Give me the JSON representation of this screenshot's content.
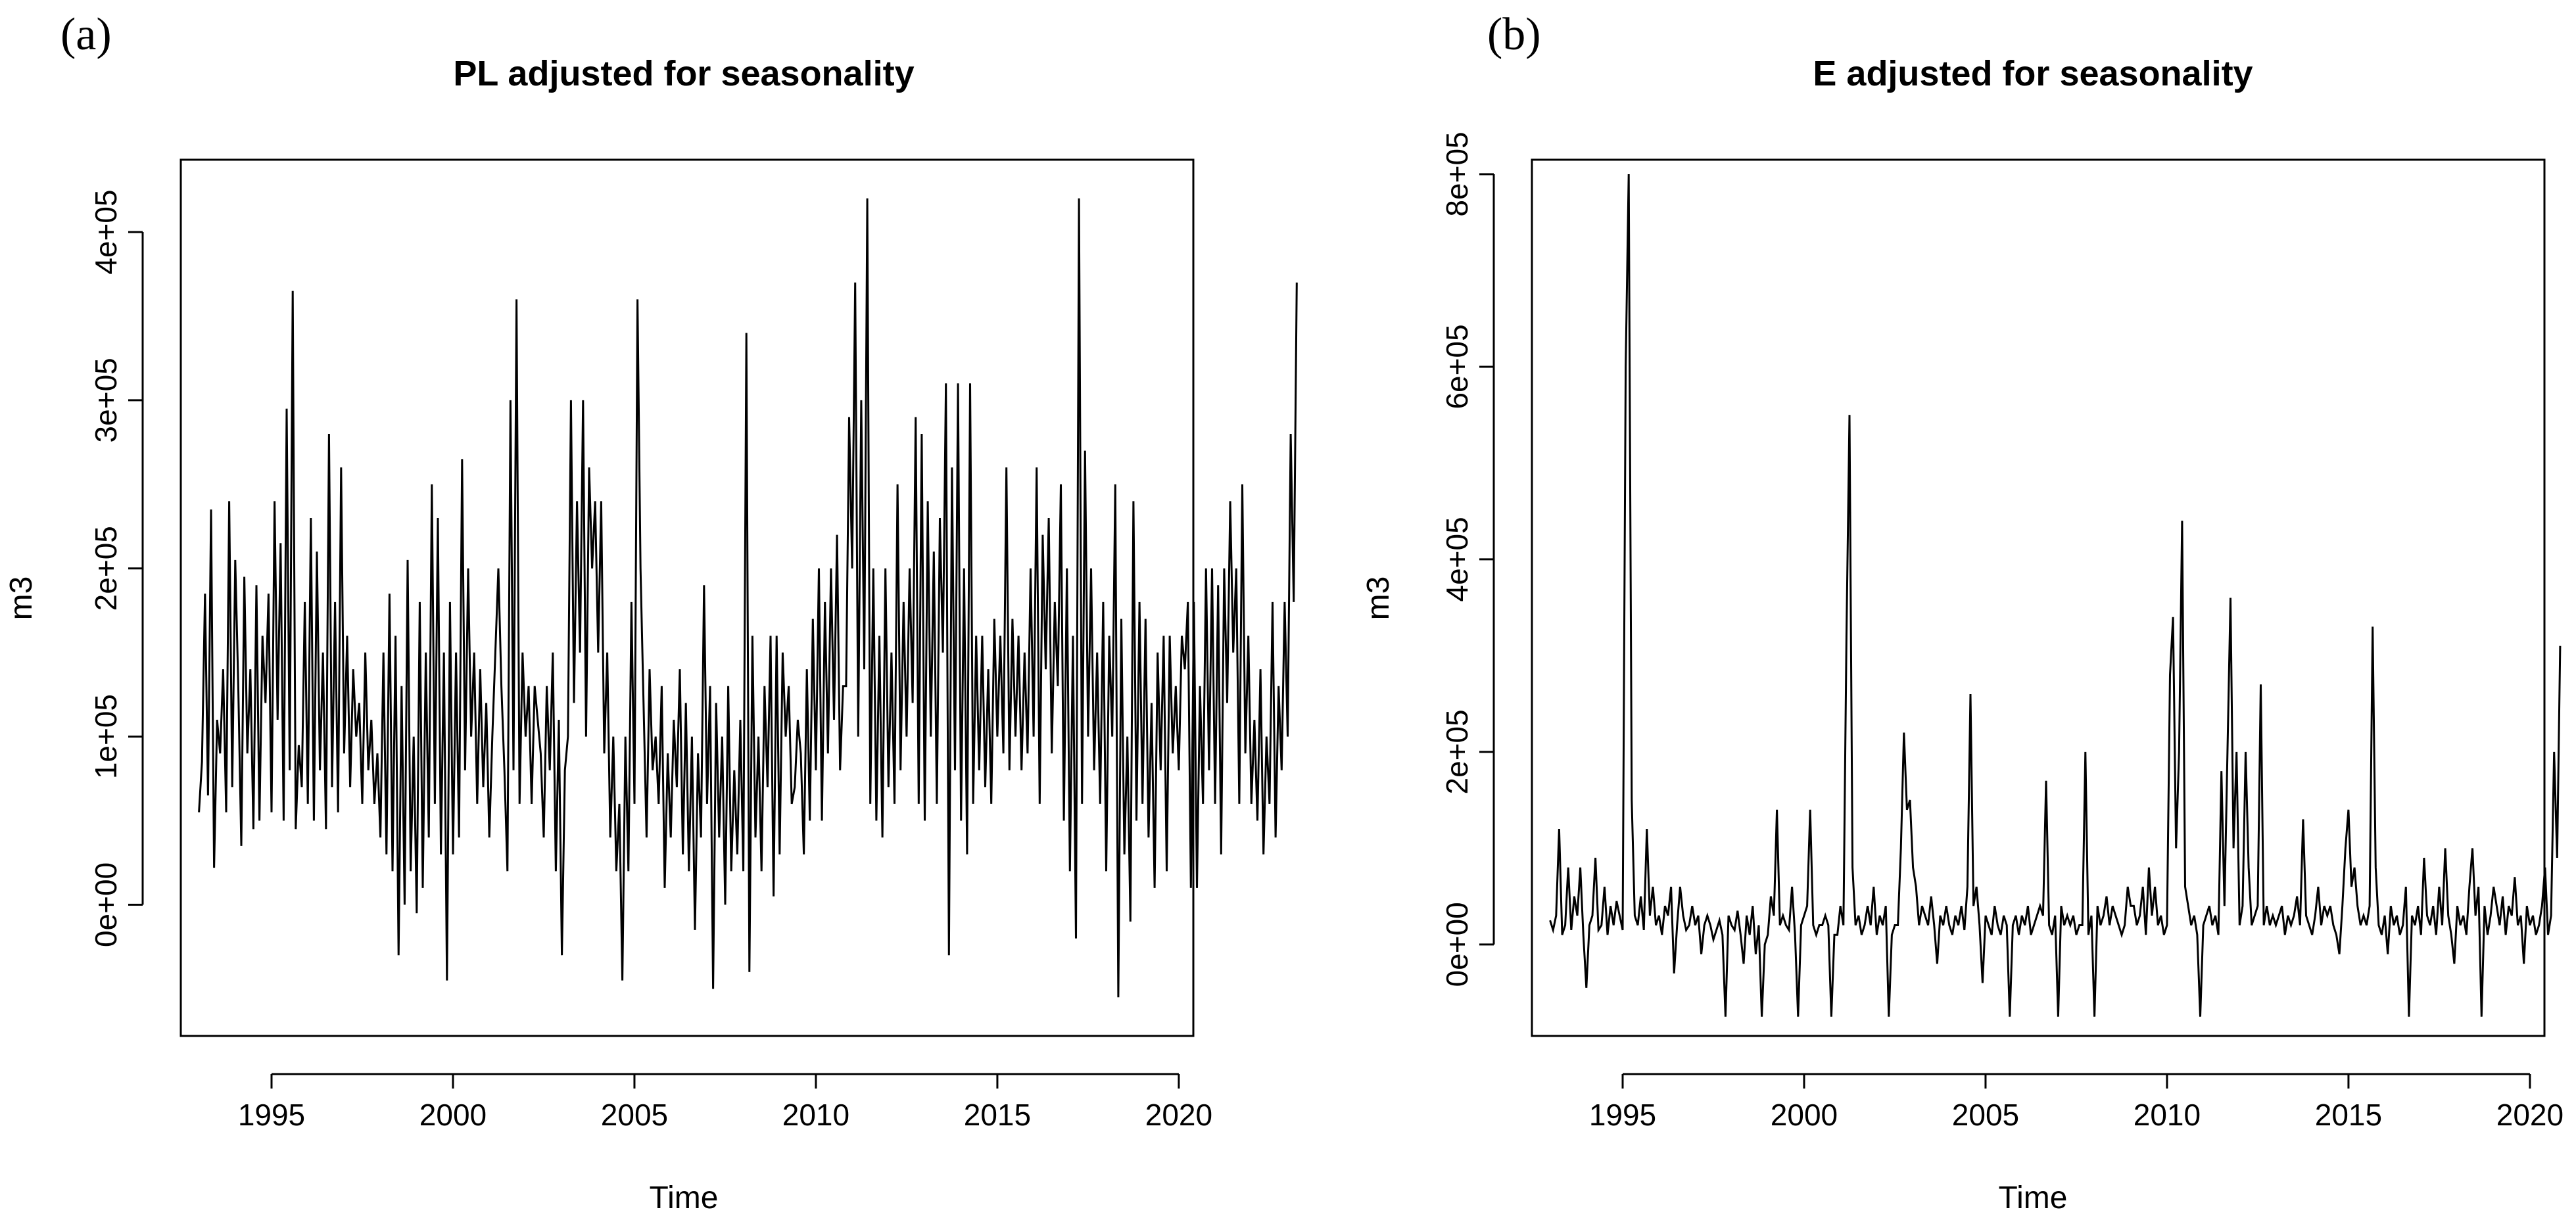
{
  "chart_data": [
    {
      "panel": "(a)",
      "type": "line",
      "title": "PL adjusted for seasonality",
      "xlabel": "Time",
      "ylabel": "m3",
      "xlim": [
        1992.5,
        2020.4
      ],
      "ylim": [
        -78000,
        443000
      ],
      "x_ticks": [
        1995,
        2000,
        2005,
        2010,
        2015,
        2020
      ],
      "x_tick_labels": [
        "1995",
        "2000",
        "2005",
        "2010",
        "2015",
        "2020"
      ],
      "y_ticks": [
        0,
        100000,
        200000,
        300000,
        400000
      ],
      "y_tick_labels": [
        "0e+00",
        "1e+05",
        "2e+05",
        "3e+05",
        "4e+05"
      ],
      "x": {
        "start": 1993.0,
        "step": 0.0833333
      },
      "values": [
        55000,
        85000,
        185000,
        65000,
        235000,
        22000,
        110000,
        90000,
        140000,
        55000,
        240000,
        70000,
        205000,
        130000,
        35000,
        195000,
        90000,
        140000,
        45000,
        190000,
        50000,
        160000,
        120000,
        185000,
        55000,
        240000,
        110000,
        215000,
        50000,
        295000,
        80000,
        365000,
        45000,
        95000,
        70000,
        180000,
        60000,
        230000,
        50000,
        210000,
        80000,
        150000,
        45000,
        280000,
        70000,
        180000,
        55000,
        260000,
        90000,
        160000,
        70000,
        140000,
        100000,
        120000,
        60000,
        150000,
        80000,
        110000,
        60000,
        90000,
        40000,
        150000,
        30000,
        185000,
        20000,
        160000,
        -30000,
        130000,
        0,
        205000,
        20000,
        100000,
        -5000,
        180000,
        10000,
        150000,
        40000,
        250000,
        60000,
        230000,
        30000,
        150000,
        -45000,
        180000,
        30000,
        150000,
        40000,
        265000,
        80000,
        200000,
        100000,
        150000,
        60000,
        140000,
        70000,
        120000,
        40000,
        100000,
        150000,
        200000,
        130000,
        80000,
        20000,
        300000,
        80000,
        360000,
        60000,
        150000,
        100000,
        130000,
        60000,
        130000,
        110000,
        90000,
        40000,
        130000,
        80000,
        150000,
        20000,
        110000,
        -30000,
        80000,
        100000,
        300000,
        120000,
        240000,
        150000,
        300000,
        100000,
        260000,
        200000,
        240000,
        150000,
        240000,
        90000,
        150000,
        40000,
        100000,
        20000,
        60000,
        -45000,
        100000,
        20000,
        180000,
        60000,
        360000,
        200000,
        120000,
        40000,
        140000,
        80000,
        100000,
        60000,
        130000,
        10000,
        90000,
        40000,
        110000,
        70000,
        140000,
        30000,
        120000,
        20000,
        100000,
        -15000,
        90000,
        40000,
        190000,
        60000,
        130000,
        -50000,
        120000,
        40000,
        100000,
        0,
        130000,
        20000,
        80000,
        30000,
        110000,
        20000,
        340000,
        -40000,
        160000,
        40000,
        100000,
        20000,
        130000,
        70000,
        160000,
        5000,
        160000,
        30000,
        150000,
        100000,
        130000,
        60000,
        70000,
        110000,
        90000,
        30000,
        140000,
        50000,
        170000,
        80000,
        200000,
        50000,
        180000,
        90000,
        200000,
        110000,
        220000,
        80000,
        130000,
        130000,
        290000,
        200000,
        370000,
        100000,
        300000,
        140000,
        420000,
        60000,
        200000,
        50000,
        160000,
        40000,
        200000,
        70000,
        150000,
        60000,
        250000,
        80000,
        180000,
        100000,
        200000,
        120000,
        290000,
        60000,
        280000,
        50000,
        240000,
        100000,
        210000,
        60000,
        230000,
        150000,
        310000,
        -30000,
        260000,
        80000,
        310000,
        50000,
        200000,
        30000,
        310000,
        60000,
        160000,
        80000,
        160000,
        70000,
        140000,
        60000,
        170000,
        100000,
        160000,
        90000,
        260000,
        80000,
        170000,
        100000,
        160000,
        80000,
        150000,
        90000,
        200000,
        100000,
        260000,
        60000,
        220000,
        140000,
        230000,
        90000,
        180000,
        130000,
        250000,
        50000,
        200000,
        20000,
        160000,
        -20000,
        420000,
        60000,
        270000,
        100000,
        200000,
        80000,
        150000,
        60000,
        180000,
        20000,
        160000,
        100000,
        250000,
        -55000,
        170000,
        30000,
        100000,
        -10000,
        240000,
        50000,
        180000,
        60000,
        170000,
        40000,
        120000,
        10000,
        150000,
        80000,
        160000,
        20000,
        160000,
        90000,
        130000,
        80000,
        160000,
        140000,
        180000,
        10000,
        180000,
        10000,
        130000,
        60000,
        200000,
        80000,
        200000,
        60000,
        190000,
        30000,
        200000,
        120000,
        240000,
        150000,
        200000,
        60000,
        250000,
        90000,
        160000,
        60000,
        110000,
        50000,
        140000,
        30000,
        100000,
        60000,
        180000,
        40000,
        130000,
        80000,
        180000,
        100000,
        280000,
        180000,
        370000
      ]
    },
    {
      "panel": "(b)",
      "type": "line",
      "title": "E adjusted for seasonality",
      "xlabel": "Time",
      "ylabel": "m3",
      "xlim": [
        1992.5,
        2020.4
      ],
      "ylim": [
        -95000,
        815000
      ],
      "x_ticks": [
        1995,
        2000,
        2005,
        2010,
        2015,
        2020
      ],
      "x_tick_labels": [
        "1995",
        "2000",
        "2005",
        "2010",
        "2015",
        "2020"
      ],
      "y_ticks": [
        0,
        200000,
        400000,
        600000,
        800000
      ],
      "y_tick_labels": [
        "0e+00",
        "2e+05",
        "4e+05",
        "6e+05",
        "8e+05"
      ],
      "x": {
        "start": 1993.0,
        "step": 0.0833333
      },
      "values": [
        25000,
        15000,
        30000,
        120000,
        10000,
        20000,
        80000,
        15000,
        50000,
        30000,
        80000,
        10000,
        -45000,
        20000,
        30000,
        90000,
        15000,
        20000,
        60000,
        10000,
        40000,
        20000,
        45000,
        30000,
        15000,
        600000,
        800000,
        150000,
        30000,
        20000,
        50000,
        15000,
        120000,
        30000,
        60000,
        20000,
        30000,
        10000,
        40000,
        30000,
        60000,
        -30000,
        20000,
        60000,
        30000,
        15000,
        20000,
        40000,
        20000,
        30000,
        -10000,
        20000,
        30000,
        20000,
        5000,
        15000,
        25000,
        10000,
        -75000,
        30000,
        20000,
        15000,
        35000,
        10000,
        -20000,
        30000,
        10000,
        40000,
        -10000,
        20000,
        -75000,
        0,
        10000,
        50000,
        30000,
        140000,
        20000,
        30000,
        20000,
        15000,
        60000,
        10000,
        -75000,
        20000,
        30000,
        40000,
        140000,
        20000,
        10000,
        20000,
        20000,
        30000,
        20000,
        -75000,
        10000,
        10000,
        40000,
        20000,
        320000,
        550000,
        80000,
        20000,
        30000,
        10000,
        20000,
        40000,
        20000,
        60000,
        10000,
        30000,
        20000,
        40000,
        -75000,
        10000,
        20000,
        20000,
        100000,
        220000,
        140000,
        150000,
        80000,
        60000,
        20000,
        40000,
        30000,
        20000,
        50000,
        20000,
        -20000,
        30000,
        20000,
        40000,
        20000,
        10000,
        30000,
        20000,
        40000,
        15000,
        60000,
        260000,
        40000,
        60000,
        20000,
        -40000,
        30000,
        20000,
        10000,
        40000,
        20000,
        10000,
        30000,
        20000,
        -75000,
        20000,
        30000,
        10000,
        30000,
        20000,
        40000,
        10000,
        20000,
        30000,
        40000,
        30000,
        170000,
        20000,
        10000,
        30000,
        -75000,
        40000,
        20000,
        30000,
        20000,
        30000,
        10000,
        20000,
        20000,
        200000,
        10000,
        30000,
        -75000,
        40000,
        20000,
        30000,
        50000,
        20000,
        40000,
        30000,
        20000,
        10000,
        20000,
        60000,
        40000,
        40000,
        20000,
        30000,
        60000,
        10000,
        80000,
        30000,
        60000,
        20000,
        30000,
        10000,
        20000,
        280000,
        340000,
        100000,
        200000,
        440000,
        60000,
        40000,
        20000,
        30000,
        10000,
        -75000,
        20000,
        30000,
        40000,
        20000,
        30000,
        10000,
        180000,
        40000,
        200000,
        360000,
        100000,
        200000,
        20000,
        40000,
        200000,
        80000,
        20000,
        30000,
        40000,
        270000,
        20000,
        40000,
        20000,
        30000,
        20000,
        30000,
        40000,
        10000,
        30000,
        20000,
        30000,
        50000,
        20000,
        130000,
        30000,
        20000,
        10000,
        30000,
        60000,
        20000,
        40000,
        30000,
        40000,
        20000,
        10000,
        -10000,
        40000,
        100000,
        140000,
        60000,
        80000,
        40000,
        20000,
        30000,
        20000,
        40000,
        330000,
        80000,
        20000,
        10000,
        30000,
        -10000,
        40000,
        20000,
        30000,
        10000,
        20000,
        60000,
        -75000,
        30000,
        20000,
        40000,
        10000,
        90000,
        30000,
        20000,
        40000,
        10000,
        60000,
        20000,
        100000,
        30000,
        10000,
        -20000,
        40000,
        20000,
        30000,
        10000,
        60000,
        100000,
        30000,
        60000,
        -75000,
        40000,
        10000,
        30000,
        60000,
        40000,
        20000,
        50000,
        10000,
        40000,
        30000,
        70000,
        20000,
        30000,
        -20000,
        40000,
        20000,
        30000,
        10000,
        20000,
        40000,
        80000,
        10000,
        30000,
        200000,
        90000,
        310000
      ]
    }
  ]
}
